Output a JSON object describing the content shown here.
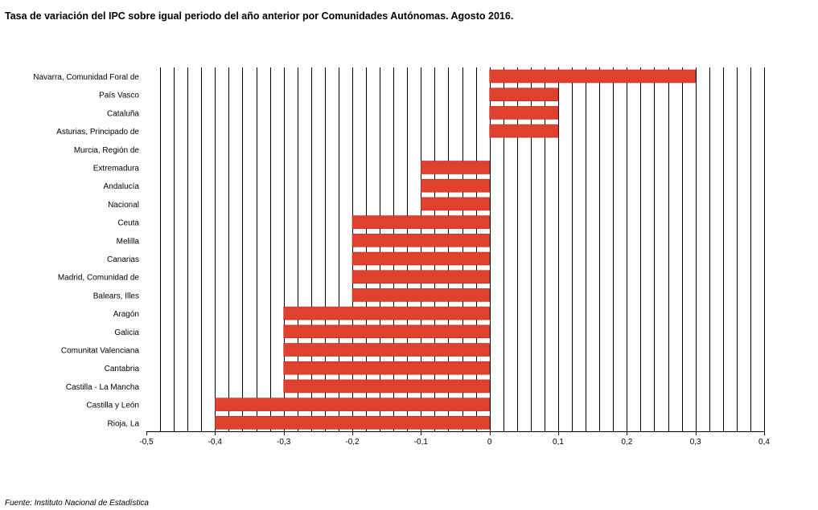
{
  "title": "Tasa de variación del IPC sobre igual periodo del año anterior por Comunidades Autónomas. Agosto 2016.",
  "source": "Fuente: Instituto Nacional de Estadística",
  "colors": {
    "bar": "#e0412f",
    "bar_border": "#b52a1c",
    "grid": "#000000"
  },
  "chart_data": {
    "type": "bar",
    "orientation": "horizontal",
    "title": "Tasa de variación del IPC sobre igual periodo del año anterior por Comunidades Autónomas. Agosto 2016.",
    "xlabel": "",
    "ylabel": "",
    "xlim": [
      -0.5,
      0.4
    ],
    "grid": true,
    "legend": "none",
    "tick_values": [
      -0.5,
      -0.4,
      -0.3,
      -0.2,
      -0.1,
      0,
      0.1,
      0.2,
      0.3,
      0.4
    ],
    "tick_labels": [
      "-0,5",
      "-0,4",
      "-0,3",
      "-0,2",
      "-0,1",
      "0",
      "0,1",
      "0,2",
      "0,3",
      "0,4"
    ],
    "categories": [
      "Navarra, Comunidad Foral de",
      "País Vasco",
      "Cataluña",
      "Asturias, Principado de",
      "Murcia, Región de",
      "Extremadura",
      "Andalucía",
      "Nacional",
      "Ceuta",
      "Melilla",
      "Canarias",
      "Madrid, Comunidad de",
      "Balears, Illes",
      "Aragón",
      "Galicia",
      "Comunitat Valenciana",
      "Cantabria",
      "Castilla - La Mancha",
      "Castilla y León",
      "Rioja, La"
    ],
    "values": [
      0.3,
      0.1,
      0.1,
      0.1,
      0.0,
      -0.1,
      -0.1,
      -0.1,
      -0.2,
      -0.2,
      -0.2,
      -0.2,
      -0.2,
      -0.3,
      -0.3,
      -0.3,
      -0.3,
      -0.3,
      -0.4,
      -0.4
    ]
  }
}
